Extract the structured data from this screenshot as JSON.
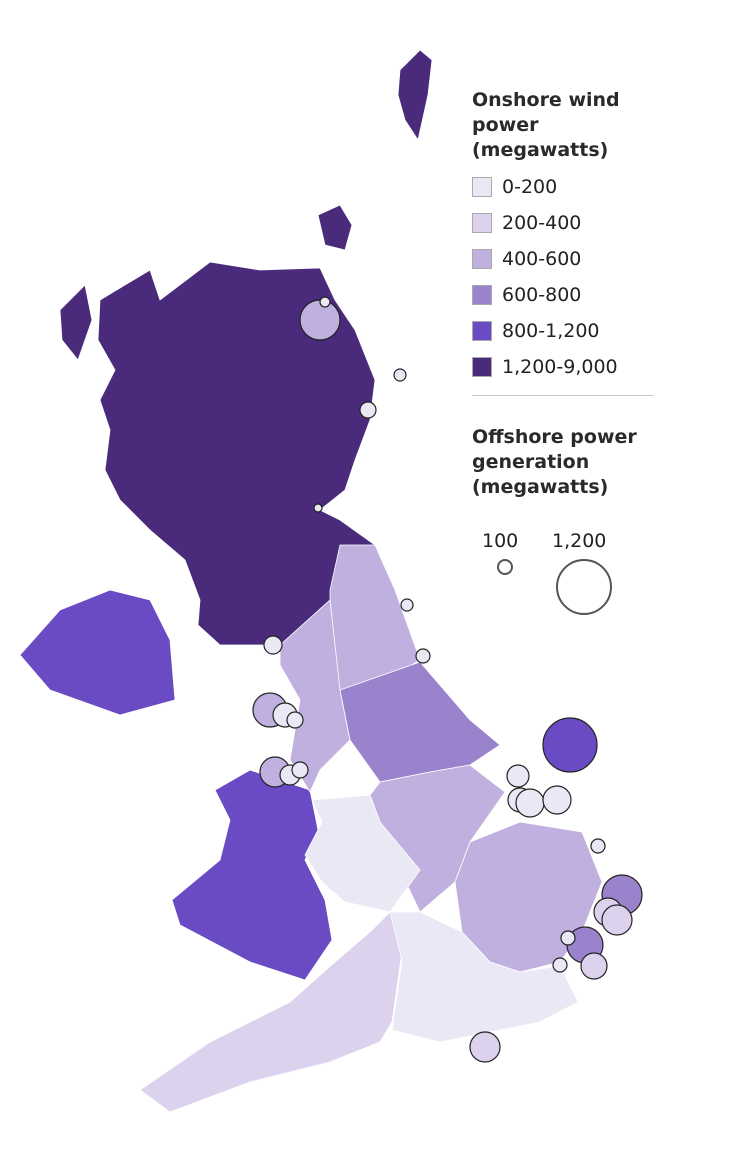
{
  "onshore_legend": {
    "title_line1": "Onshore wind power",
    "title_line2": "(megawatts)",
    "classes": [
      {
        "label": "0-200",
        "color": "#ebe8f5"
      },
      {
        "label": "200-400",
        "color": "#dcd2ee"
      },
      {
        "label": "400-600",
        "color": "#c0b0e0"
      },
      {
        "label": "600-800",
        "color": "#9a82cc"
      },
      {
        "label": "800-1,200",
        "color": "#6b4bc4"
      },
      {
        "label": "1,200-9,000",
        "color": "#4a2a7a"
      }
    ]
  },
  "offshore_legend": {
    "title_line1": "Offshore power",
    "title_line2": "generation",
    "title_line3": "(megawatts)",
    "size_small": "100",
    "size_large": "1,200"
  },
  "regions": {
    "scotland": "1,200-9,000",
    "northern_ireland": "800-1,200",
    "wales": "800-1,200",
    "north_east": "400-600",
    "north_west": "400-600",
    "yorkshire": "600-800",
    "east_midlands": "400-600",
    "west_midlands": "0-200",
    "east_of_england": "400-600",
    "south_west": "200-400",
    "south_east": "0-200"
  }
}
